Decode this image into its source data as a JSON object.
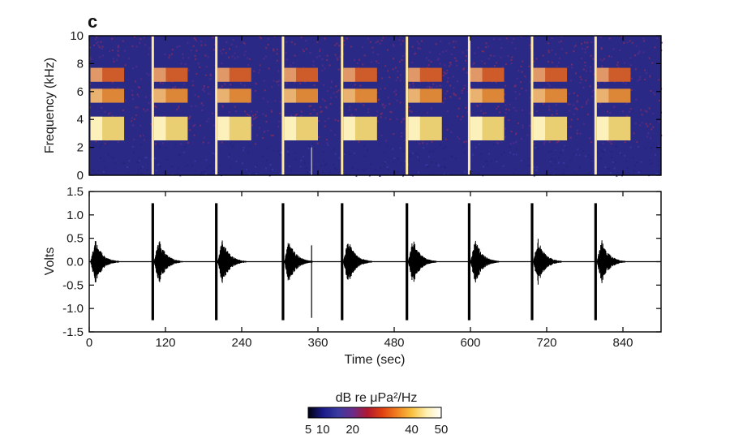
{
  "chart_data": [
    {
      "panel": "c",
      "type": "heatmap",
      "ylabel": "Frequency (kHz)",
      "xlabel": "",
      "xlim": [
        0,
        900
      ],
      "ylim": [
        0,
        10
      ],
      "yticks": [
        0,
        2,
        4,
        6,
        8,
        10
      ],
      "grid": false,
      "pulse_times_sec": [
        0,
        100,
        200,
        305,
        398,
        500,
        598,
        697,
        797
      ],
      "transient_times_sec": [
        100,
        200,
        305,
        398,
        500,
        598,
        697,
        797
      ],
      "spike_times_sec": [
        350
      ],
      "harmonic_bands_khz": [
        {
          "low": 2.5,
          "high": 4.2,
          "level_db": 45
        },
        {
          "low": 5.2,
          "high": 6.2,
          "level_db": 30
        },
        {
          "low": 6.7,
          "high": 7.7,
          "level_db": 28
        }
      ],
      "background_level_db": 10
    },
    {
      "type": "line",
      "ylabel": "Volts",
      "xlabel": "Time (sec)",
      "xlim": [
        0,
        900
      ],
      "ylim": [
        -1.5,
        1.5
      ],
      "xticks": [
        0,
        120,
        240,
        360,
        480,
        600,
        720,
        840
      ],
      "yticks": [
        -1.5,
        -1.0,
        -0.5,
        0.0,
        0.5,
        1.0,
        1.5
      ],
      "grid": false,
      "pulse_times_sec": [
        0,
        100,
        200,
        305,
        398,
        500,
        598,
        697,
        797
      ],
      "pulse_peak_amplitude_v": 0.5,
      "pulse_duration_sec": 45,
      "transient_times_sec": [
        100,
        200,
        305,
        398,
        500,
        598,
        697,
        797
      ],
      "transient_amplitude_v": 1.25,
      "spike": {
        "time_sec": 350,
        "min_v": -1.2,
        "max_v": 0.35
      }
    }
  ],
  "colorbar": {
    "title": "dB re μPa²/Hz",
    "min": 5,
    "max": 50,
    "ticks": [
      5,
      10,
      20,
      40,
      50
    ],
    "colors": [
      "#000010",
      "#1a1a8a",
      "#3a3aa0",
      "#6a2c8a",
      "#b01830",
      "#e04010",
      "#f08020",
      "#f8c040",
      "#fff0b0",
      "#ffffff"
    ]
  },
  "labels": {
    "panel_letter": "c",
    "spec_ylabel": "Frequency (kHz)",
    "wave_ylabel": "Volts",
    "xlabel": "Time (sec)"
  }
}
